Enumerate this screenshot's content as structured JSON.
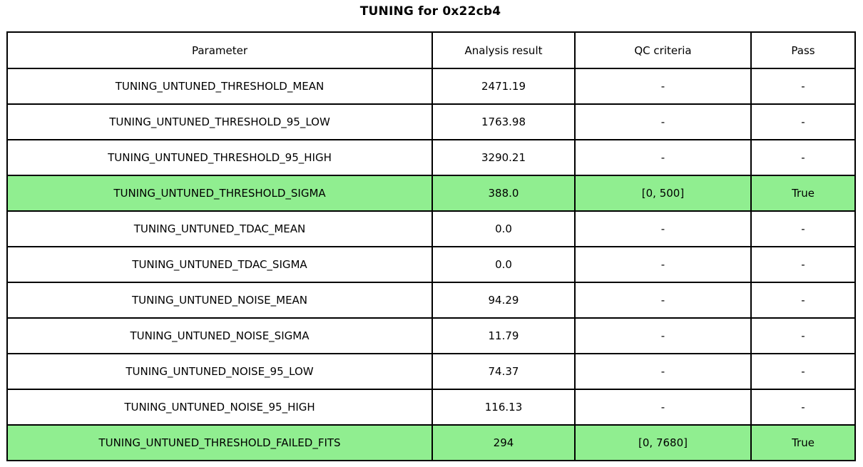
{
  "title": "TUNING for 0x22cb4",
  "chart_data": {
    "type": "table",
    "title": "TUNING for 0x22cb4",
    "columns": [
      "Parameter",
      "Analysis result",
      "QC criteria",
      "Pass"
    ],
    "highlight_color": "#90ee90",
    "border_color": "#000000",
    "rows": [
      {
        "param": "TUNING_UNTUNED_THRESHOLD_MEAN",
        "result": "2471.19",
        "qc": "-",
        "pass": "-",
        "highlight": false
      },
      {
        "param": "TUNING_UNTUNED_THRESHOLD_95_LOW",
        "result": "1763.98",
        "qc": "-",
        "pass": "-",
        "highlight": false
      },
      {
        "param": "TUNING_UNTUNED_THRESHOLD_95_HIGH",
        "result": "3290.21",
        "qc": "-",
        "pass": "-",
        "highlight": false
      },
      {
        "param": "TUNING_UNTUNED_THRESHOLD_SIGMA",
        "result": "388.0",
        "qc": "[0, 500]",
        "pass": "True",
        "highlight": true
      },
      {
        "param": "TUNING_UNTUNED_TDAC_MEAN",
        "result": "0.0",
        "qc": "-",
        "pass": "-",
        "highlight": false
      },
      {
        "param": "TUNING_UNTUNED_TDAC_SIGMA",
        "result": "0.0",
        "qc": "-",
        "pass": "-",
        "highlight": false
      },
      {
        "param": "TUNING_UNTUNED_NOISE_MEAN",
        "result": "94.29",
        "qc": "-",
        "pass": "-",
        "highlight": false
      },
      {
        "param": "TUNING_UNTUNED_NOISE_SIGMA",
        "result": "11.79",
        "qc": "-",
        "pass": "-",
        "highlight": false
      },
      {
        "param": "TUNING_UNTUNED_NOISE_95_LOW",
        "result": "74.37",
        "qc": "-",
        "pass": "-",
        "highlight": false
      },
      {
        "param": "TUNING_UNTUNED_NOISE_95_HIGH",
        "result": "116.13",
        "qc": "-",
        "pass": "-",
        "highlight": false
      },
      {
        "param": "TUNING_UNTUNED_THRESHOLD_FAILED_FITS",
        "result": "294",
        "qc": "[0, 7680]",
        "pass": "True",
        "highlight": true
      }
    ]
  }
}
